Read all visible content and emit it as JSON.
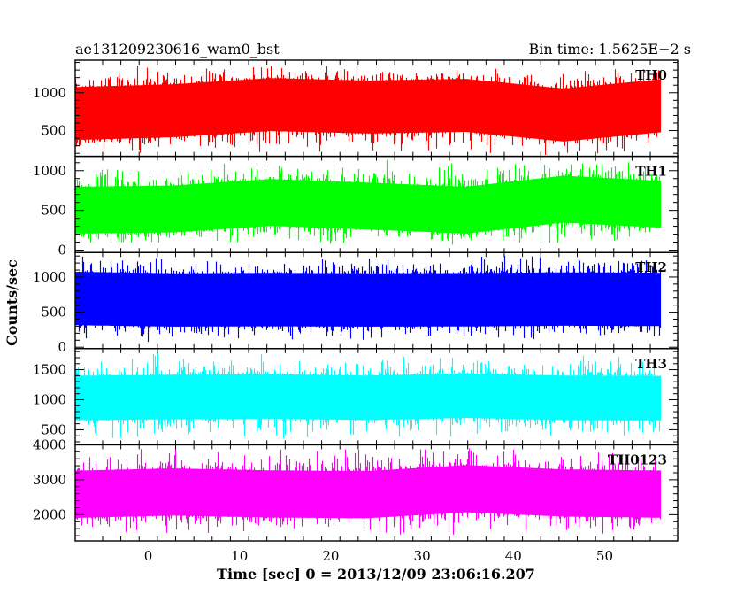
{
  "chart_data": {
    "type": "line",
    "title_left": "ae131209230616_wam0_bst",
    "title_right": "Bin time: 1.5625E−2 s",
    "xlabel": "Time [sec] 0 = 2013/12/09 23:06:16.207",
    "ylabel": "Counts/sec",
    "xlim": [
      -8,
      58
    ],
    "x_ticks": [
      0,
      10,
      20,
      30,
      40,
      50
    ],
    "x_tick_labels": [
      "0",
      "10",
      "20",
      "30",
      "40",
      "50"
    ],
    "data_x_range": [
      -8.1,
      56.2
    ],
    "bin_time_s": 0.015625,
    "grid": false,
    "panels": [
      {
        "name": "TH0",
        "color": "#ff0000",
        "ylim": [
          160,
          1430
        ],
        "y_ticks": [
          500,
          1000
        ],
        "y_tick_labels": [
          "500",
          "1000"
        ],
        "band": [
          400,
          1100
        ],
        "range": [
          170,
          1380
        ],
        "lift": [
          0.3,
          0.45,
          0.78,
          0.65,
          0.74,
          0.22,
          0.72
        ]
      },
      {
        "name": "TH1",
        "color": "#00ff00",
        "ylim": [
          -30,
          1180
        ],
        "y_ticks": [
          0,
          500,
          1000
        ],
        "y_tick_labels": [
          "0",
          "500",
          "1000"
        ],
        "band": [
          280,
          870
        ],
        "range": [
          40,
          1150
        ],
        "lift": [
          0.05,
          0.12,
          0.52,
          0.3,
          0.05,
          0.72,
          0.41
        ]
      },
      {
        "name": "TH2",
        "color": "#0000ff",
        "ylim": [
          -20,
          1350
        ],
        "y_ticks": [
          0,
          500,
          1000
        ],
        "y_tick_labels": [
          "0",
          "500",
          "1000"
        ],
        "band": [
          320,
          1080
        ],
        "range": [
          60,
          1320
        ],
        "lift": [
          0.38,
          0.3,
          0.32,
          0.3,
          0.31,
          0.35,
          0.33
        ]
      },
      {
        "name": "TH3",
        "color": "#00ffff",
        "ylim": [
          250,
          1850
        ],
        "y_ticks": [
          500,
          1000,
          1500
        ],
        "y_tick_labels": [
          "500",
          "1000",
          "1500"
        ],
        "band": [
          680,
          1420
        ],
        "range": [
          330,
          1800
        ],
        "lift": [
          0.32,
          0.38,
          0.42,
          0.33,
          0.47,
          0.33,
          0.31
        ]
      },
      {
        "name": "TH0123",
        "color": "#ff00ff",
        "ylim": [
          1250,
          4000
        ],
        "y_ticks": [
          2000,
          3000,
          4000
        ],
        "y_tick_labels": [
          "2000",
          "3000",
          "4000"
        ],
        "band": [
          1900,
          3250
        ],
        "range": [
          1350,
          3950
        ],
        "lift": [
          0.42,
          0.56,
          0.44,
          0.4,
          0.76,
          0.5,
          0.43
        ]
      }
    ]
  }
}
